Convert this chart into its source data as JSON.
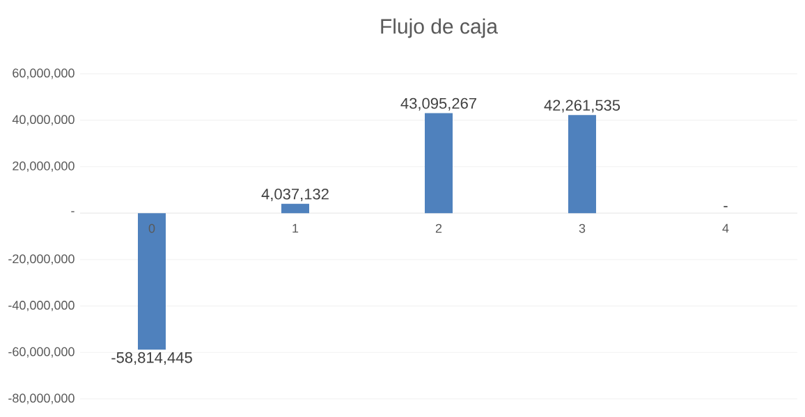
{
  "chart_data": {
    "type": "bar",
    "title": "Flujo de caja",
    "categories": [
      "0",
      "1",
      "2",
      "3",
      "4"
    ],
    "values": [
      -58814445,
      4037132,
      43095267,
      42261535,
      0
    ],
    "value_labels": [
      "-58,814,445",
      "4,037,132",
      "43,095,267",
      "42,261,535",
      "-"
    ],
    "color": "#4f81bd",
    "ylim": [
      -80000000,
      60000000
    ],
    "yticks": [
      {
        "value": -80000000,
        "label": "-80,000,000"
      },
      {
        "value": -60000000,
        "label": "-60,000,000"
      },
      {
        "value": -40000000,
        "label": "-40,000,000"
      },
      {
        "value": -20000000,
        "label": "-20,000,000"
      },
      {
        "value": 0,
        "label": "-"
      },
      {
        "value": 20000000,
        "label": "20,000,000"
      },
      {
        "value": 40000000,
        "label": "40,000,000"
      },
      {
        "value": 60000000,
        "label": "60,000,000"
      }
    ],
    "grid": "y"
  }
}
